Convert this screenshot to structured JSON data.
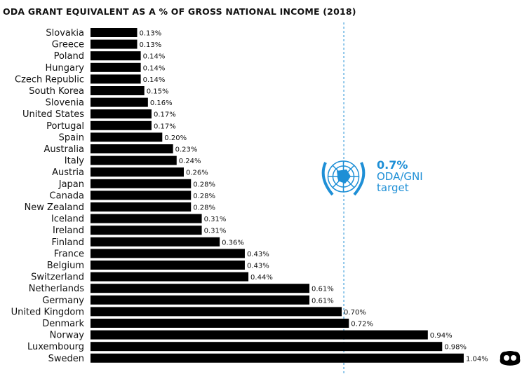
{
  "chart_data": {
    "type": "bar",
    "orientation": "horizontal",
    "title": "ODA GRANT EQUIVALENT AS A % OF GROSS NATIONAL INCOME (2018)",
    "categories": [
      "Slovakia",
      "Greece",
      "Poland",
      "Hungary",
      "Czech Republic",
      "South Korea",
      "Slovenia",
      "United States",
      "Portugal",
      "Spain",
      "Australia",
      "Italy",
      "Austria",
      "Japan",
      "Canada",
      "New Zealand",
      "Iceland",
      "Ireland",
      "Finland",
      "France",
      "Belgium",
      "Switzerland",
      "Netherlands",
      "Germany",
      "United Kingdom",
      "Denmark",
      "Norway",
      "Luxembourg",
      "Sweden"
    ],
    "values": [
      0.13,
      0.13,
      0.14,
      0.14,
      0.14,
      0.15,
      0.16,
      0.17,
      0.17,
      0.2,
      0.23,
      0.24,
      0.26,
      0.28,
      0.28,
      0.28,
      0.31,
      0.31,
      0.36,
      0.43,
      0.43,
      0.44,
      0.61,
      0.61,
      0.7,
      0.72,
      0.94,
      0.98,
      1.04
    ],
    "value_suffix": "%",
    "bar_color": "#000000",
    "reference_line": {
      "value": 0.7,
      "style": "dashed",
      "color": "#1e8fd6"
    },
    "annotation": {
      "value_text": "0.7%",
      "line1": "ODA/GNI",
      "line2": "target",
      "color": "#1e8fd6",
      "icon": "un-emblem-icon"
    },
    "grid": false
  }
}
